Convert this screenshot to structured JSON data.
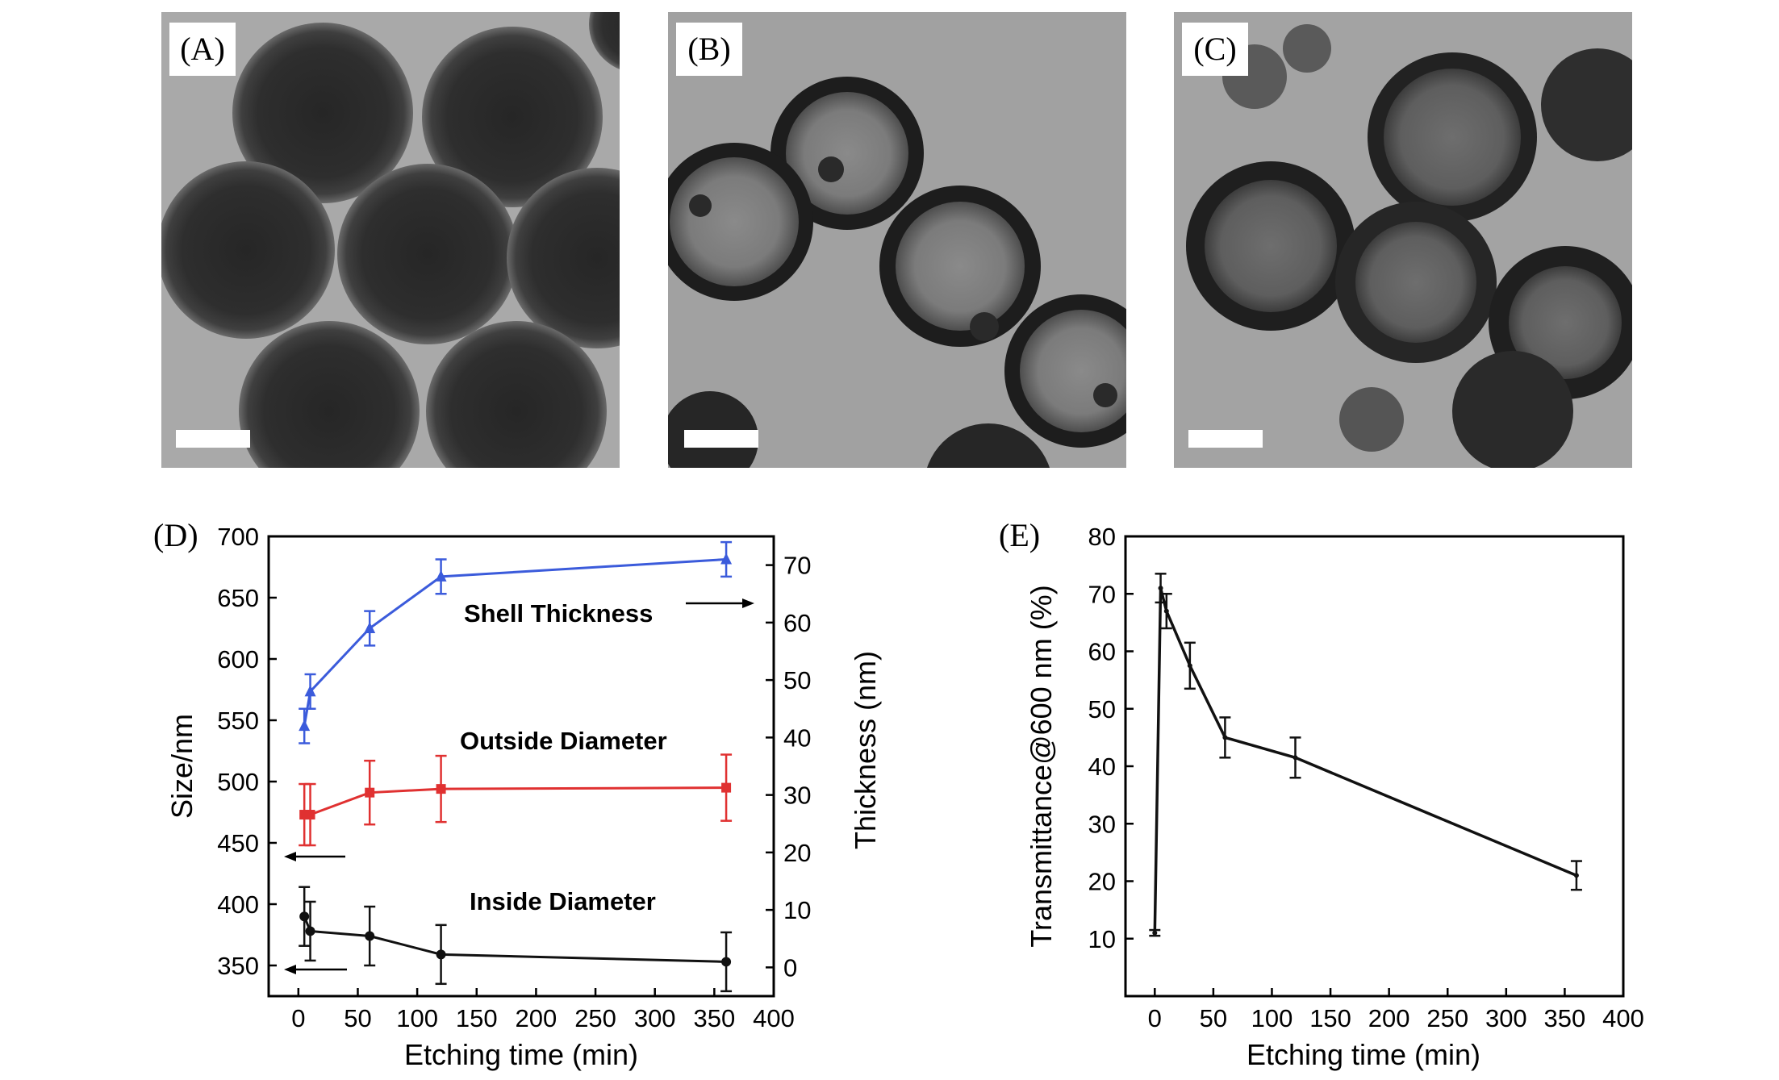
{
  "micrographs": [
    {
      "label": "(A)"
    },
    {
      "label": "(B)"
    },
    {
      "label": "(C)"
    }
  ],
  "colors": {
    "shell": "#3b5bdb",
    "outside": "#e03131",
    "inside": "#111111",
    "transmittance": "#111111"
  },
  "chart_data": [
    {
      "panel": "(D)",
      "type": "line",
      "xlabel": "Etching time (min)",
      "ylabel": "Size/nm",
      "y2label": "Thickness (nm)",
      "xlim": [
        -25,
        400
      ],
      "ylim": [
        325,
        700
      ],
      "y2lim": [
        -5,
        75
      ],
      "xticks": [
        0,
        50,
        100,
        150,
        200,
        250,
        300,
        350,
        400
      ],
      "yticks": [
        350,
        400,
        450,
        500,
        550,
        600,
        650,
        700
      ],
      "y2ticks": [
        0,
        10,
        20,
        30,
        40,
        50,
        60,
        70
      ],
      "series": [
        {
          "name": "Shell Thickness",
          "axis": "right",
          "marker": "triangle",
          "x": [
            5,
            10,
            60,
            120,
            360
          ],
          "y": [
            42,
            48,
            59,
            68,
            71
          ],
          "err": [
            3,
            3,
            3,
            3,
            3
          ]
        },
        {
          "name": "Outside Diameter",
          "axis": "left",
          "marker": "square",
          "x": [
            5,
            10,
            60,
            120,
            360
          ],
          "y": [
            473,
            473,
            491,
            494,
            495
          ],
          "err": [
            25,
            25,
            26,
            27,
            27
          ]
        },
        {
          "name": "Inside Diameter",
          "axis": "left",
          "marker": "circle",
          "x": [
            5,
            10,
            60,
            120,
            360
          ],
          "y": [
            390,
            378,
            374,
            359,
            353
          ],
          "err": [
            24,
            24,
            24,
            24,
            24
          ]
        }
      ]
    },
    {
      "panel": "(E)",
      "type": "line",
      "xlabel": "Etching time (min)",
      "ylabel": "Transmittance@600 nm (%)",
      "xlim": [
        -25,
        400
      ],
      "ylim": [
        0,
        80
      ],
      "xticks": [
        0,
        50,
        100,
        150,
        200,
        250,
        300,
        350,
        400
      ],
      "yticks": [
        10,
        20,
        30,
        40,
        50,
        60,
        70,
        80
      ],
      "series": [
        {
          "name": "",
          "x": [
            0,
            5,
            10,
            30,
            60,
            120,
            360
          ],
          "y": [
            11,
            71,
            67,
            57.5,
            45,
            41.5,
            21
          ],
          "err": [
            0.5,
            2.5,
            3,
            4,
            3.5,
            3.5,
            2.5
          ]
        }
      ]
    }
  ]
}
